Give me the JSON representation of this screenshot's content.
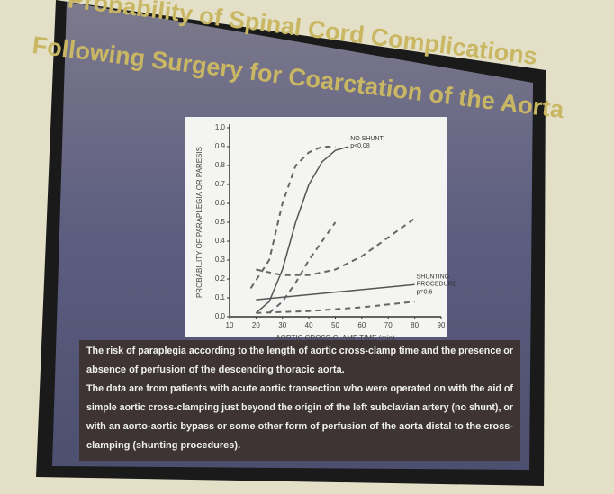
{
  "chart_data": {
    "type": "line",
    "title_lines": [
      "Probability of Spinal Cord Complications",
      "Following Surgery for Coarctation of the Aorta"
    ],
    "xlabel": "AORTIC CROSS-CLAMP TIME (min)",
    "ylabel": "PROBABILITY OF PARAPLEGIA OR PARESIS",
    "xlim": [
      10,
      90
    ],
    "xticks": [
      10,
      20,
      30,
      40,
      50,
      60,
      70,
      80,
      90
    ],
    "ylim": [
      0,
      1
    ],
    "yticks": [
      {
        "value": 0,
        "label": "0.0"
      },
      0.1,
      0.2,
      0.3,
      0.4,
      0.5,
      0.6,
      0.7,
      0.8,
      0.9,
      {
        "value": 1,
        "label": "1.0"
      }
    ],
    "series": [
      {
        "name": "NO SHUNT",
        "color": "#555555",
        "dash": false,
        "x": [
          20,
          25,
          30,
          35,
          40,
          45,
          50,
          55
        ],
        "values": [
          0.02,
          0.08,
          0.25,
          0.5,
          0.7,
          0.82,
          0.88,
          0.9
        ]
      },
      {
        "color": "#666666",
        "dash": true,
        "x": [
          18,
          25,
          30,
          35,
          40,
          45,
          50
        ],
        "values": [
          0.15,
          0.3,
          0.6,
          0.8,
          0.87,
          0.9,
          0.9
        ]
      },
      {
        "color": "#666666",
        "dash": true,
        "x": [
          25,
          30,
          35,
          40,
          45,
          50
        ],
        "values": [
          0.02,
          0.08,
          0.18,
          0.3,
          0.4,
          0.5
        ]
      },
      {
        "name": "SHUNTING PROCEDURE",
        "color": "#555555",
        "dash": false,
        "x": [
          20,
          80
        ],
        "values": [
          0.09,
          0.17
        ]
      },
      {
        "color": "#666666",
        "dash": true,
        "x": [
          20,
          30,
          40,
          50,
          60,
          70,
          80
        ],
        "values": [
          0.25,
          0.22,
          0.22,
          0.25,
          0.32,
          0.42,
          0.52
        ]
      },
      {
        "color": "#666666",
        "dash": true,
        "x": [
          20,
          40,
          60,
          80
        ],
        "values": [
          0.02,
          0.03,
          0.05,
          0.08
        ]
      }
    ],
    "annotations": [
      {
        "text": "p<0.08",
        "series": 0
      },
      {
        "text": "p=0.6",
        "series": 3
      }
    ],
    "caption": [
      "The risk of paraplegia according to the length of aortic cross-clamp time and the presence or",
      "absence of perfusion of the descending thoracic aorta.",
      "The data are from patients with acute aortic transection who were operated on with the aid of",
      "simple aortic cross-clamping just beyond the origin of the left subclavian artery (no shunt), or",
      "with an aorto-aortic bypass or some other form of perfusion of the aorta distal to the cross-",
      "clamping (shunting procedures)."
    ]
  }
}
